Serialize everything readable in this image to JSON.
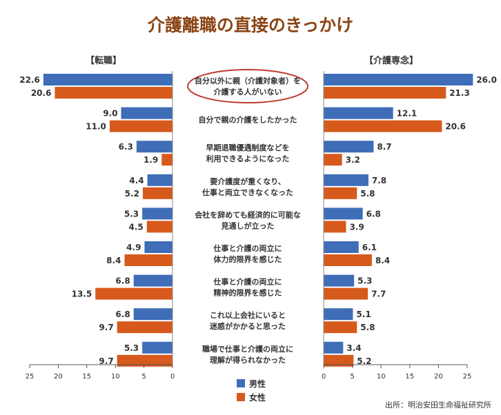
{
  "chart_data": {
    "type": "bar",
    "title": "介護離職の直接のきっかけ",
    "source": "出所：明治安田生命福祉研究所",
    "categories": [
      [
        "自分以外に親（介護対象者）を",
        "介護する人がいない"
      ],
      [
        "自分で親の介護をしたかった"
      ],
      [
        "早期退職優遇制度などを",
        "利用できるようになった"
      ],
      [
        "要介護度が重くなり、",
        "仕事と両立できなくなった"
      ],
      [
        "会社を辞めても経済的に可能な",
        "見通しが立った"
      ],
      [
        "仕事と介護の両立に",
        "体力的限界を感じた"
      ],
      [
        "仕事と介護の両立に",
        "精神的限界を感じた"
      ],
      [
        "これ以上会社にいると",
        "迷惑がかかると思った"
      ],
      [
        "職場で仕事と介護の両立に",
        "理解が得られなかった"
      ]
    ],
    "highlight_index": 0,
    "legend": {
      "placement": "bottom-center"
    },
    "panels": [
      {
        "label": "【転職】",
        "direction": "left",
        "xlim": [
          0,
          25
        ],
        "ticks": [
          "25",
          "20",
          "15",
          "10",
          "5",
          "0"
        ],
        "tick_values": [
          25,
          20,
          15,
          10,
          5,
          0
        ],
        "series": [
          {
            "name": "男性",
            "values": [
              22.6,
              9.0,
              6.3,
              4.4,
              5.3,
              4.9,
              6.8,
              6.8,
              5.3
            ]
          },
          {
            "name": "女性",
            "values": [
              20.6,
              11.0,
              1.9,
              5.2,
              4.5,
              8.4,
              13.5,
              9.7,
              9.7
            ]
          }
        ]
      },
      {
        "label": "【介護専念】",
        "direction": "right",
        "xlim": [
          0,
          25
        ],
        "ticks": [
          "0",
          "5",
          "10",
          "15",
          "20",
          "25"
        ],
        "tick_values": [
          0,
          5,
          10,
          15,
          20,
          25
        ],
        "series": [
          {
            "name": "男性",
            "values": [
              26.0,
              12.1,
              8.7,
              7.8,
              6.8,
              6.1,
              5.3,
              5.1,
              3.4
            ]
          },
          {
            "name": "女性",
            "values": [
              21.3,
              20.6,
              3.2,
              5.8,
              3.9,
              8.4,
              7.7,
              5.8,
              5.2
            ]
          }
        ]
      }
    ],
    "colors": {
      "男性": "#3f6db7",
      "女性": "#d65a1c",
      "title": "#8a4414",
      "highlight": "#c0392b"
    }
  }
}
